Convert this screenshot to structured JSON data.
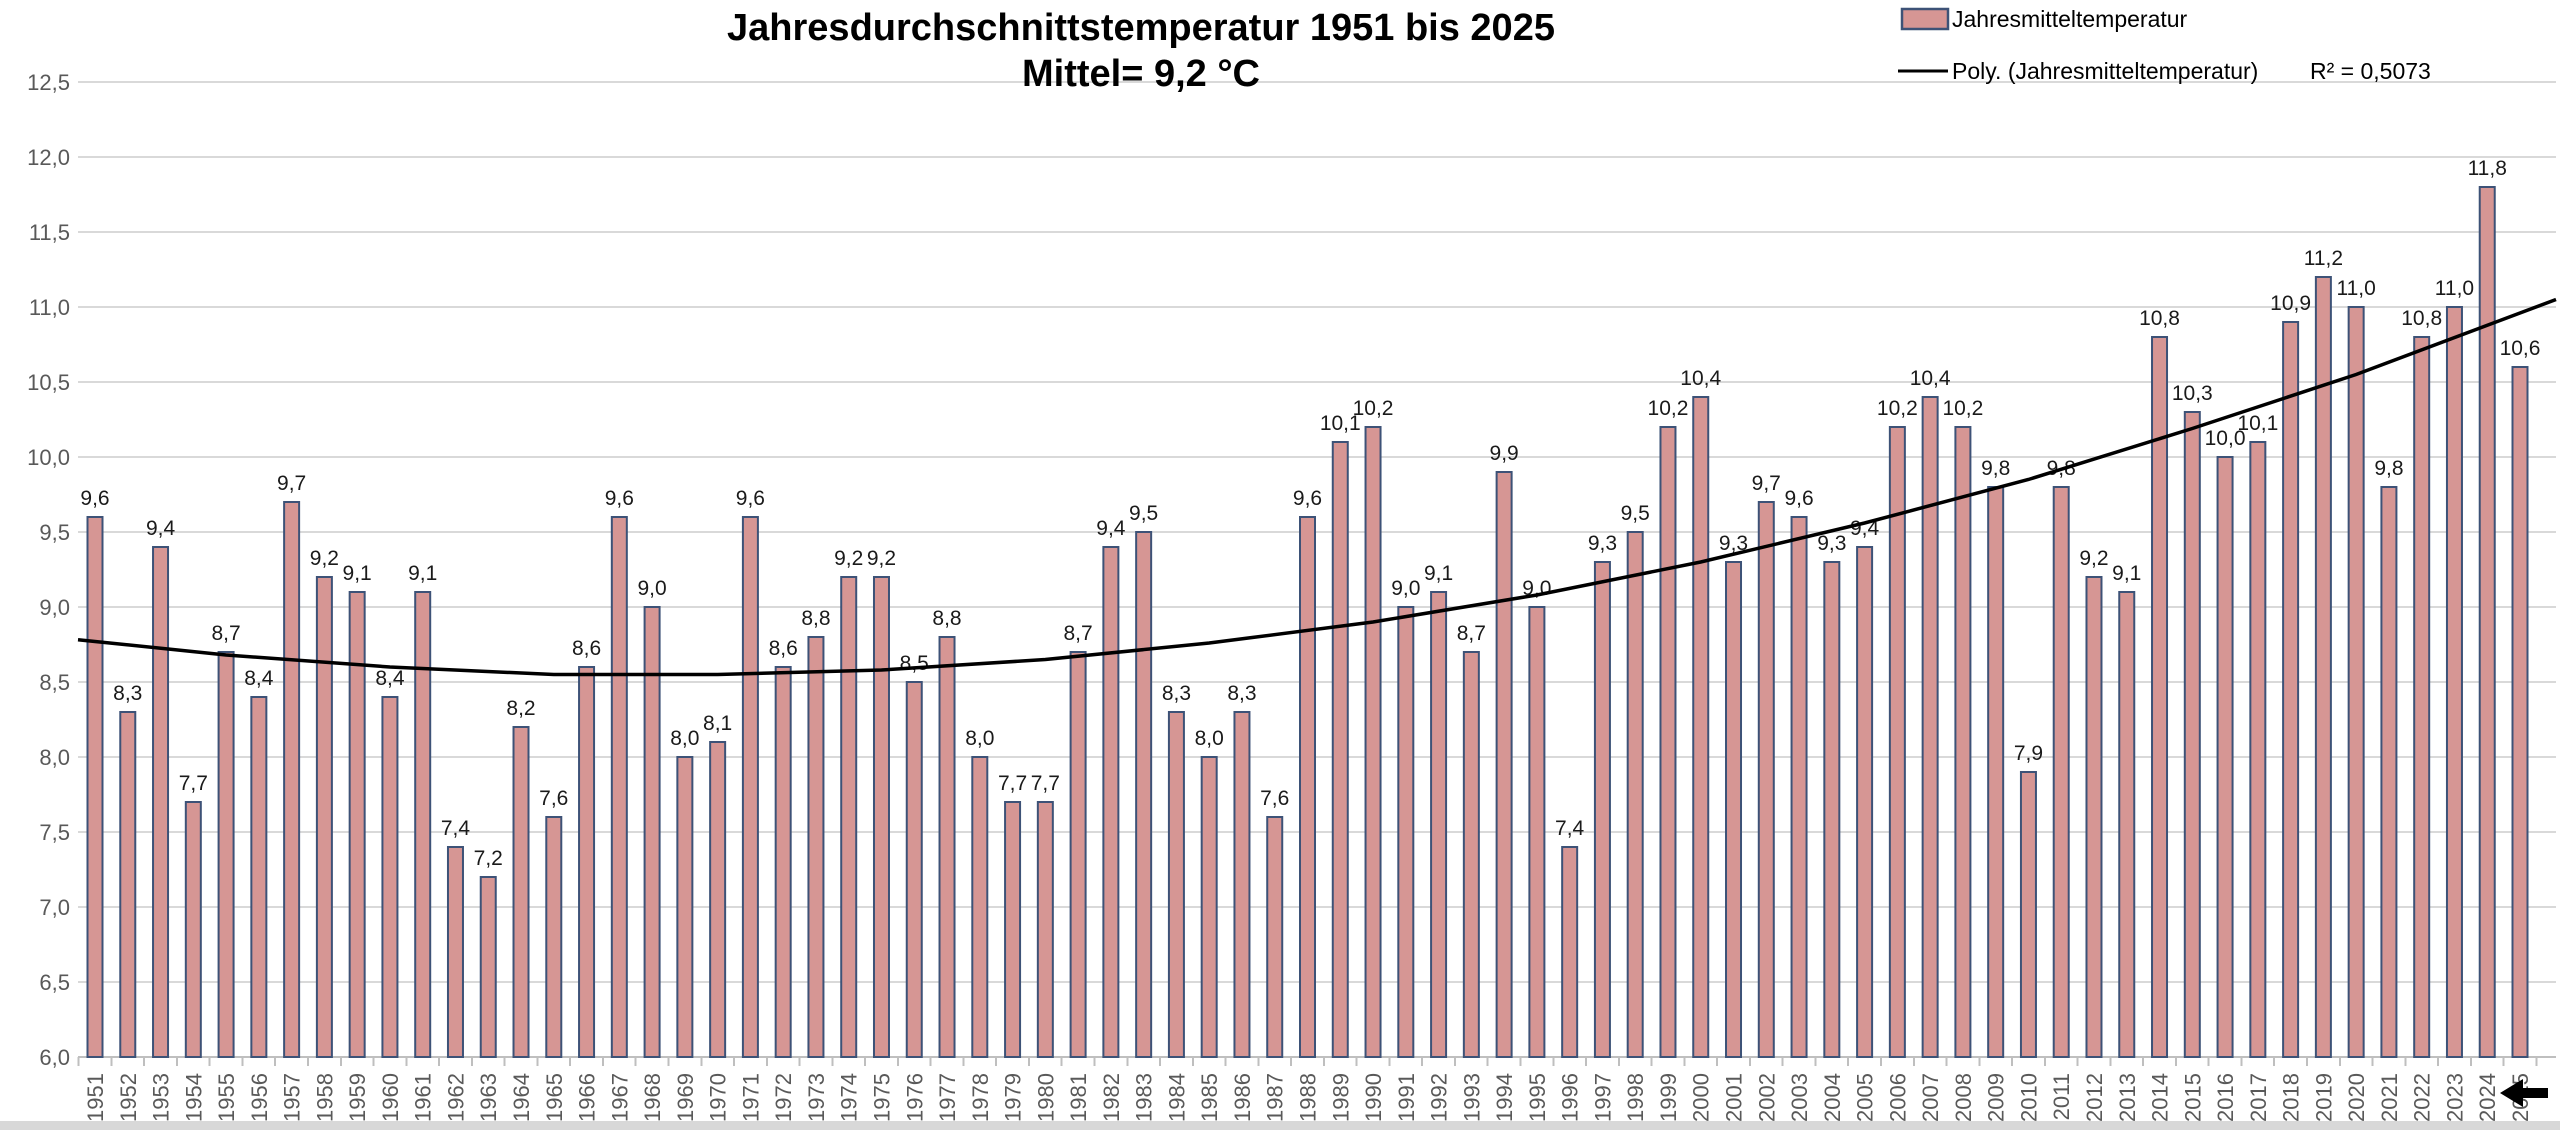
{
  "title": {
    "line1": "Jahresdurchschnittstemperatur 1951 bis 2025",
    "line2": "Mittel= 9,2 °C"
  },
  "legend": {
    "bar_label": "Jahresmitteltemperatur",
    "line_label": "Poly. (Jahresmitteltemperatur)",
    "r_squared": "R² = 0,5073"
  },
  "colors": {
    "bar_fill": "#d69694",
    "bar_border": "#3d5277",
    "trend_line": "#000000",
    "gridline": "#d9d9d9",
    "axis_line": "#bfbfbf",
    "axis_text": "#595959",
    "data_label": "#1a1a1a",
    "bottom_strip": "#d8d8d8"
  },
  "chart_data": {
    "type": "bar",
    "title": "Jahresdurchschnittstemperatur 1951 bis 2025 Mittel= 9,2 °C",
    "xlabel": "",
    "ylabel": "",
    "ylim": [
      6.0,
      12.5
    ],
    "ytick_step": 0.5,
    "ytick_labels": [
      "6,0",
      "6,5",
      "7,0",
      "7,5",
      "8,0",
      "8,5",
      "9,0",
      "9,5",
      "10,0",
      "10,5",
      "11,0",
      "11,5",
      "12,0",
      "12,5"
    ],
    "grid": true,
    "legend_position": "top-right",
    "series_name": "Jahresmitteltemperatur",
    "decimal_separator": ",",
    "categories": [
      1951,
      1952,
      1953,
      1954,
      1955,
      1956,
      1957,
      1958,
      1959,
      1960,
      1961,
      1962,
      1963,
      1964,
      1965,
      1966,
      1967,
      1968,
      1969,
      1970,
      1971,
      1972,
      1973,
      1974,
      1975,
      1976,
      1977,
      1978,
      1979,
      1980,
      1981,
      1982,
      1983,
      1984,
      1985,
      1986,
      1987,
      1988,
      1989,
      1990,
      1991,
      1992,
      1993,
      1994,
      1995,
      1996,
      1997,
      1998,
      1999,
      2000,
      2001,
      2002,
      2003,
      2004,
      2005,
      2006,
      2007,
      2008,
      2009,
      2010,
      2011,
      2012,
      2013,
      2014,
      2015,
      2016,
      2017,
      2018,
      2019,
      2020,
      2021,
      2022,
      2023,
      2024,
      2025
    ],
    "values": [
      9.6,
      8.3,
      9.4,
      7.7,
      8.7,
      8.4,
      9.7,
      9.2,
      9.1,
      8.4,
      9.1,
      7.4,
      7.2,
      8.2,
      7.6,
      8.6,
      9.6,
      9.0,
      8.0,
      8.1,
      9.6,
      8.6,
      8.8,
      9.2,
      9.2,
      8.5,
      8.8,
      8.0,
      7.7,
      7.7,
      8.7,
      9.4,
      9.5,
      8.3,
      8.0,
      8.3,
      7.6,
      9.6,
      10.1,
      10.2,
      9.0,
      9.1,
      8.7,
      9.9,
      9.0,
      7.4,
      9.3,
      9.5,
      10.2,
      10.4,
      9.3,
      9.7,
      9.6,
      9.3,
      9.4,
      10.2,
      10.4,
      10.2,
      9.8,
      7.9,
      9.8,
      9.2,
      9.1,
      10.8,
      10.3,
      10.0,
      10.1,
      10.9,
      11.2,
      11.0,
      9.8,
      10.8,
      11.0,
      11.8,
      10.6
    ],
    "trendline": {
      "name": "Poly. (Jahresmitteltemperatur)",
      "r_squared_label": "R² = 0,5073",
      "points": [
        [
          1951,
          8.77
        ],
        [
          1955,
          8.68
        ],
        [
          1960,
          8.6
        ],
        [
          1965,
          8.55
        ],
        [
          1970,
          8.55
        ],
        [
          1975,
          8.58
        ],
        [
          1980,
          8.65
        ],
        [
          1985,
          8.76
        ],
        [
          1990,
          8.9
        ],
        [
          1995,
          9.08
        ],
        [
          2000,
          9.3
        ],
        [
          2005,
          9.56
        ],
        [
          2010,
          9.85
        ],
        [
          2015,
          10.19
        ],
        [
          2020,
          10.55
        ],
        [
          2025,
          10.96
        ]
      ]
    }
  }
}
